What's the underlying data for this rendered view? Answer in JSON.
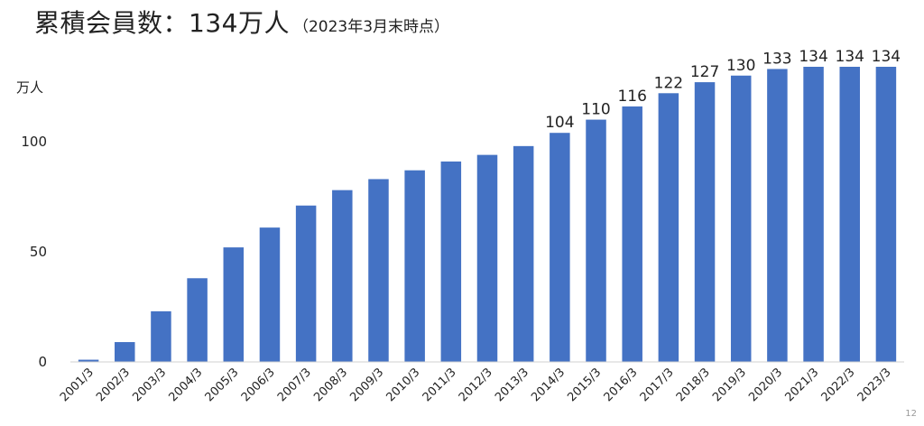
{
  "header": {
    "title": "累積会員数：134万人",
    "subtitle": "（2023年3月末時点）"
  },
  "page_number": "12",
  "chart_data": {
    "type": "bar",
    "title": "累積会員数：134万人（2023年3月末時点）",
    "ylabel": "万人",
    "xlabel": "",
    "ylim": [
      0,
      134
    ],
    "yticks": [
      0,
      50,
      100
    ],
    "grid": false,
    "bar_color": "#4472C4",
    "categories": [
      "2001/3",
      "2002/3",
      "2003/3",
      "2004/3",
      "2005/3",
      "2006/3",
      "2007/3",
      "2008/3",
      "2009/3",
      "2010/3",
      "2011/3",
      "2012/3",
      "2013/3",
      "2014/3",
      "2015/3",
      "2016/3",
      "2017/3",
      "2018/3",
      "2019/3",
      "2020/3",
      "2021/3",
      "2022/3",
      "2023/3"
    ],
    "values": [
      1,
      9,
      23,
      38,
      52,
      61,
      71,
      78,
      83,
      87,
      91,
      94,
      98,
      104,
      110,
      116,
      122,
      127,
      130,
      133,
      134,
      134,
      134
    ],
    "data_labels": [
      null,
      null,
      null,
      null,
      null,
      null,
      null,
      null,
      null,
      null,
      null,
      null,
      null,
      "104",
      "110",
      "116",
      "122",
      "127",
      "130",
      "133",
      "134",
      "134",
      "134"
    ]
  }
}
